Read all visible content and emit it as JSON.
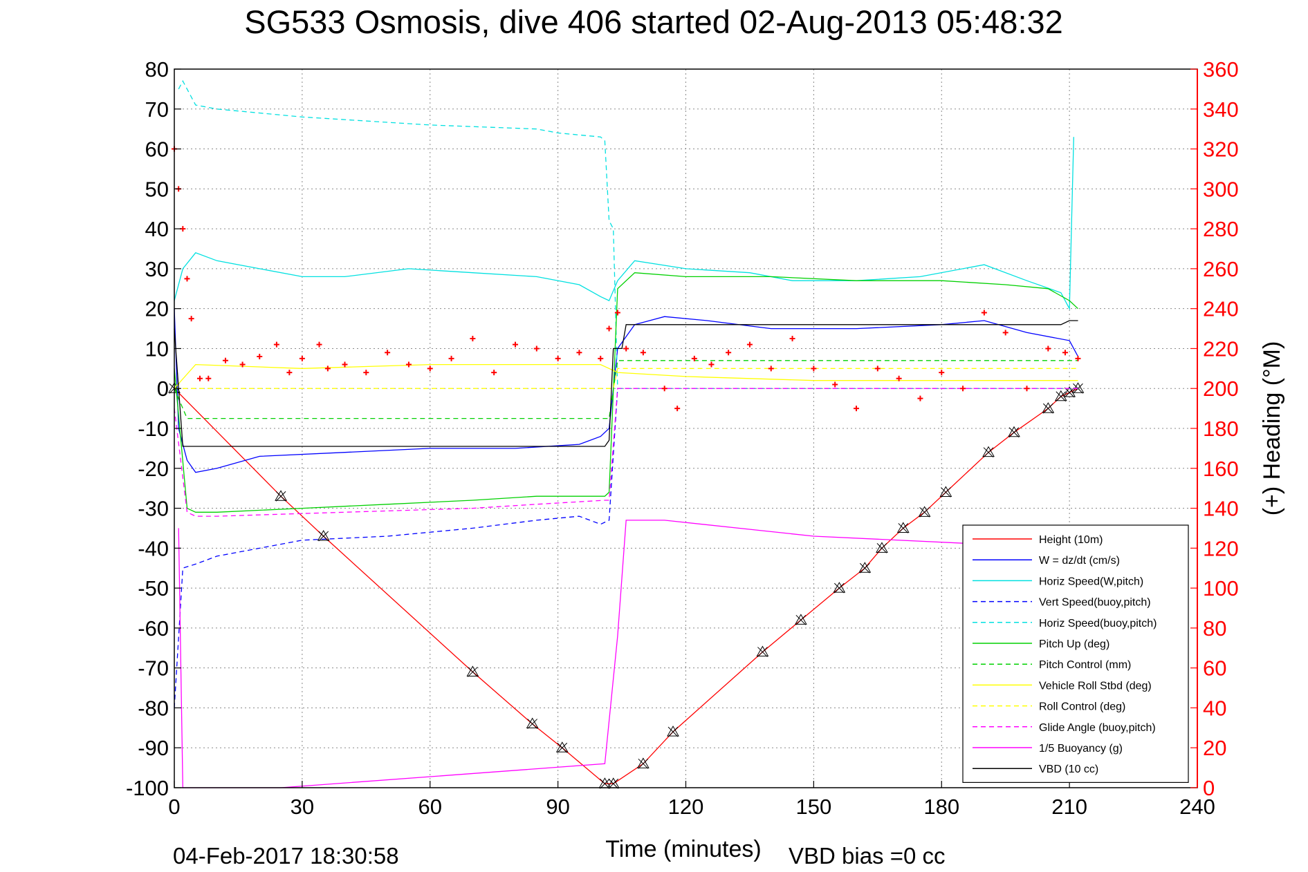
{
  "chart_data": {
    "type": "line",
    "title": "SG533 Osmosis, dive 406 started 02-Aug-2013 05:48:32",
    "xlabel": "Time (minutes)",
    "ylabel": "",
    "ylabel_right": "(+) Heading (°M)",
    "xlim": [
      0,
      240
    ],
    "ylim": [
      -100,
      80
    ],
    "ylim_right": [
      0,
      360
    ],
    "grid": true,
    "legend_position": "bottom-right",
    "footer_left": "04-Feb-2017 18:30:58",
    "footer_right": "VBD bias =0 cc",
    "x_ticks": [
      "0",
      "30",
      "60",
      "90",
      "120",
      "150",
      "180",
      "210",
      "240"
    ],
    "y_ticks": [
      "80",
      "70",
      "60",
      "50",
      "40",
      "30",
      "20",
      "10",
      "0",
      "-10",
      "-20",
      "-30",
      "-40",
      "-50",
      "-60",
      "-70",
      "-80",
      "-90",
      "-100"
    ],
    "y_ticks_right": [
      "360",
      "340",
      "320",
      "300",
      "280",
      "260",
      "240",
      "220",
      "200",
      "180",
      "160",
      "140",
      "120",
      "100",
      "80",
      "60",
      "40",
      "20",
      "0"
    ],
    "series": [
      {
        "name": "Height (10m)",
        "color": "#ff0000",
        "dash": false,
        "axis": "left",
        "x": [
          0,
          25,
          35,
          70,
          84,
          91,
          101,
          103,
          110,
          117,
          138,
          147,
          156,
          162,
          166,
          171,
          176,
          181,
          191,
          197,
          205,
          208,
          210,
          212
        ],
        "y": [
          0,
          -27,
          -37,
          -71,
          -84,
          -90,
          -99,
          -99,
          -94,
          -86,
          -66,
          -58,
          -50,
          -45,
          -40,
          -35,
          -31,
          -26,
          -16,
          -11,
          -5,
          -2,
          -1,
          0
        ]
      },
      {
        "name": "W = dz/dt (cm/s)",
        "color": "#0000ff",
        "dash": false,
        "axis": "left",
        "x": [
          0,
          1,
          3,
          5,
          10,
          20,
          40,
          60,
          80,
          95,
          100,
          102,
          104,
          108,
          115,
          125,
          140,
          160,
          180,
          190,
          200,
          210,
          212
        ],
        "y": [
          20,
          -10,
          -18,
          -21,
          -20,
          -17,
          -16,
          -15,
          -15,
          -14,
          -12,
          -10,
          10,
          16,
          18,
          17,
          15,
          15,
          16,
          17,
          14,
          12,
          8
        ]
      },
      {
        "name": "Horiz Speed(W,pitch)",
        "color": "#00e0e0",
        "dash": false,
        "axis": "left",
        "x": [
          0,
          2,
          5,
          10,
          20,
          30,
          40,
          55,
          70,
          85,
          95,
          100,
          102,
          104,
          108,
          120,
          135,
          145,
          160,
          175,
          190,
          200,
          208,
          210,
          211
        ],
        "y": [
          22,
          30,
          34,
          32,
          30,
          28,
          28,
          30,
          29,
          28,
          26,
          23,
          22,
          27,
          32,
          30,
          29,
          27,
          27,
          28,
          31,
          27,
          24,
          20,
          63
        ]
      },
      {
        "name": "Vert Speed(buoy,pitch)",
        "color": "#0000ff",
        "dash": true,
        "axis": "left",
        "x": [
          0,
          2,
          5,
          10,
          30,
          50,
          70,
          85,
          95,
          100,
          102,
          104,
          110,
          212
        ],
        "y": [
          -80,
          -45,
          -44,
          -42,
          -38,
          -37,
          -35,
          -33,
          -32,
          -34,
          -33,
          0,
          0,
          0
        ]
      },
      {
        "name": "Horiz Speed(buoy,pitch)",
        "color": "#00e0e0",
        "dash": true,
        "axis": "left",
        "x": [
          1,
          2,
          5,
          10,
          30,
          60,
          85,
          90,
          100,
          101,
          102,
          103,
          104,
          105,
          212
        ],
        "y": [
          75,
          77,
          71,
          70,
          68,
          66,
          65,
          64,
          63,
          62,
          42,
          40,
          0,
          0,
          0
        ]
      },
      {
        "name": "Pitch Up (deg)",
        "color": "#00d000",
        "dash": false,
        "axis": "left",
        "x": [
          0,
          3,
          5,
          10,
          30,
          50,
          70,
          85,
          90,
          101,
          102,
          104,
          108,
          120,
          140,
          160,
          180,
          195,
          205,
          210,
          212
        ],
        "y": [
          5,
          -30,
          -31,
          -31,
          -30,
          -29,
          -28,
          -27,
          -27,
          -27,
          -26,
          25,
          29,
          28,
          28,
          27,
          27,
          26,
          25,
          22,
          20
        ]
      },
      {
        "name": "Pitch Control (mm)",
        "color": "#00d000",
        "dash": true,
        "axis": "left",
        "x": [
          0,
          3,
          102,
          104,
          212
        ],
        "y": [
          0,
          -7.5,
          -7.5,
          7,
          7
        ]
      },
      {
        "name": "Vehicle Roll Stbd (deg)",
        "color": "#ffff00",
        "dash": false,
        "axis": "left",
        "x": [
          0,
          5,
          30,
          60,
          100,
          102,
          104,
          120,
          150,
          180,
          200,
          210,
          212
        ],
        "y": [
          0,
          6,
          5,
          6,
          6,
          5,
          4,
          3,
          2,
          2,
          2,
          2,
          2
        ]
      },
      {
        "name": "Roll Control (deg)",
        "color": "#ffff00",
        "dash": true,
        "axis": "left",
        "x": [
          0,
          5,
          20,
          40,
          60,
          80,
          100,
          103,
          104,
          120,
          150,
          180,
          212
        ],
        "y": [
          0,
          0,
          0,
          0,
          0,
          0,
          0,
          0,
          5,
          5,
          5,
          5,
          5
        ]
      },
      {
        "name": "Glide Angle (buoy,pitch)",
        "color": "#ff00ff",
        "dash": true,
        "axis": "left",
        "x": [
          0,
          3,
          5,
          10,
          40,
          70,
          85,
          101,
          102,
          104,
          212
        ],
        "y": [
          -5,
          -31,
          -32,
          -32,
          -31,
          -30,
          -29,
          -28,
          -28,
          0,
          0
        ]
      },
      {
        "name": "1/5 Buoyancy (g)",
        "color": "#ff00ff",
        "dash": false,
        "axis": "left",
        "x": [
          1,
          2,
          25,
          101,
          104,
          106,
          115,
          150,
          190
        ],
        "y": [
          -35,
          -100,
          -100,
          -94,
          -62,
          -33,
          -33,
          -37,
          -39
        ]
      },
      {
        "name": "VBD (10 cc)",
        "color": "#000000",
        "dash": false,
        "axis": "left",
        "x": [
          0,
          1,
          2,
          101,
          102,
          103,
          105,
          106,
          208,
          210,
          212
        ],
        "y": [
          15,
          0,
          -14.5,
          -14.5,
          -13,
          10,
          10,
          16,
          16,
          17,
          17
        ]
      },
      {
        "name": "Heading",
        "color": "#ff0000",
        "marker": "+",
        "axis": "right",
        "x": [
          0,
          1,
          2,
          3,
          4,
          6,
          8,
          12,
          16,
          20,
          24,
          27,
          30,
          34,
          36,
          40,
          45,
          50,
          55,
          60,
          65,
          70,
          75,
          80,
          85,
          90,
          95,
          100,
          102,
          104,
          106,
          110,
          115,
          118,
          122,
          126,
          130,
          135,
          140,
          145,
          150,
          155,
          160,
          165,
          170,
          175,
          180,
          185,
          190,
          195,
          200,
          205,
          209,
          212
        ],
        "y": [
          320,
          300,
          280,
          255,
          235,
          205,
          205,
          214,
          212,
          216,
          222,
          208,
          215,
          222,
          210,
          212,
          208,
          218,
          212,
          210,
          215,
          225,
          208,
          222,
          220,
          215,
          218,
          215,
          230,
          238,
          220,
          218,
          200,
          190,
          215,
          212,
          218,
          222,
          210,
          225,
          210,
          202,
          190,
          210,
          205,
          195,
          208,
          200,
          238,
          228,
          200,
          220,
          218,
          215
        ]
      }
    ]
  }
}
